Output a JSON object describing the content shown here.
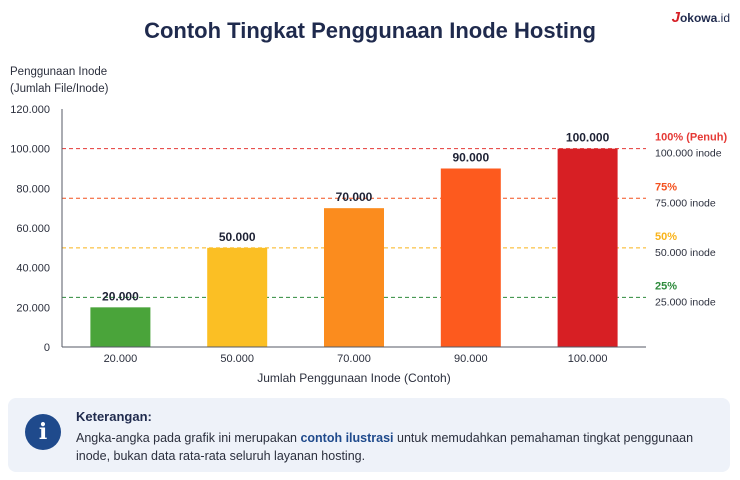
{
  "page": {
    "title": "Contoh Tingkat Penggunaan Inode Hosting",
    "brand": {
      "j": "J",
      "rest": "okowa",
      "tld": ".id"
    }
  },
  "chart_data": {
    "type": "bar",
    "ylabel_line1": "Penggunaan Inode",
    "ylabel_line2": "(Jumlah File/Inode)",
    "xlabel": "Jumlah Penggunaan Inode (Contoh)",
    "ylim": [
      0,
      120000
    ],
    "yticks": [
      0,
      20000,
      40000,
      60000,
      80000,
      100000,
      120000
    ],
    "ytick_labels": [
      "0",
      "20.000",
      "40.000",
      "60.000",
      "80.000",
      "100.000",
      "120.000"
    ],
    "categories": [
      "20.000",
      "50.000",
      "70.000",
      "90.000",
      "100.000"
    ],
    "values": [
      20000,
      50000,
      70000,
      90000,
      100000
    ],
    "value_labels": [
      "20.000",
      "50.000",
      "70.000",
      "90.000",
      "100.000"
    ],
    "bar_colors": [
      "#4aa43a",
      "#fbbf24",
      "#fb8c1e",
      "#fd5a1e",
      "#d71f24"
    ],
    "grid": false,
    "reference_lines": [
      {
        "value": 100000,
        "label": "100% (Penuh)",
        "sublabel": "100.000 inode",
        "color": "#e53935"
      },
      {
        "value": 75000,
        "label": "75%",
        "sublabel": "75.000 inode",
        "color": "#f4511e"
      },
      {
        "value": 50000,
        "label": "50%",
        "sublabel": "50.000 inode",
        "color": "#f9b319"
      },
      {
        "value": 25000,
        "label": "25%",
        "sublabel": "25.000 inode",
        "color": "#2e8b3c"
      }
    ]
  },
  "info": {
    "title": "Keterangan:",
    "text_before": "Angka-angka pada grafik ini merupakan ",
    "highlight": "contoh ilustrasi",
    "text_after": " untuk memudahkan pemahaman tingkat penggunaan inode, bukan data rata-rata seluruh layanan hosting."
  }
}
